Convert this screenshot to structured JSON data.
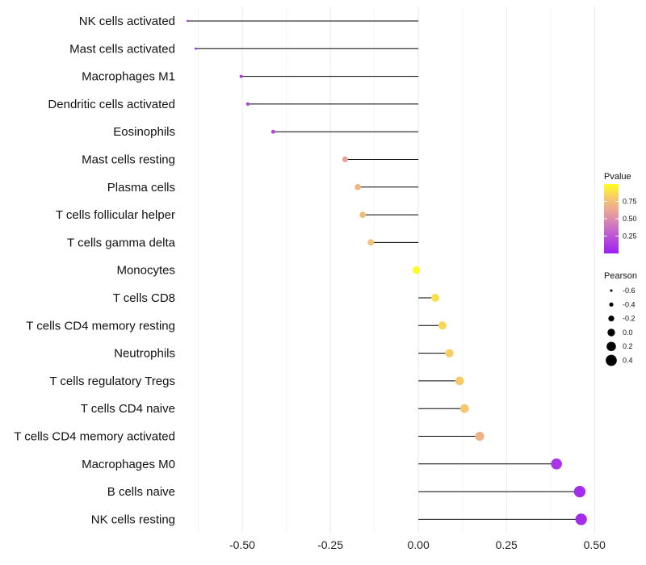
{
  "chart_data": {
    "type": "scatter",
    "subtype": "lollipop",
    "title": "",
    "xlabel": "",
    "ylabel": "",
    "xlim": [
      -0.665,
      0.52
    ],
    "x_ticks": [
      -0.5,
      -0.25,
      0.0,
      0.25,
      0.5
    ],
    "x_tick_labels": [
      "-0.50",
      "-0.25",
      "0.00",
      "0.25",
      "0.50"
    ],
    "grid": true,
    "categories": [
      "NK cells activated",
      "Mast cells activated",
      "Macrophages M1",
      "Dendritic cells activated",
      "Eosinophils",
      "Mast cells resting",
      "Plasma cells",
      "T cells follicular helper",
      "T cells gamma delta",
      "Monocytes",
      "T cells CD8",
      "T cells CD4 memory resting",
      "Neutrophils",
      "T cells regulatory  Tregs ",
      "T cells CD4 naive",
      "T cells CD4 memory activated",
      "Macrophages M0",
      "B cells naive",
      "NK cells resting"
    ],
    "values": [
      -0.655,
      -0.632,
      -0.503,
      -0.484,
      -0.412,
      -0.208,
      -0.172,
      -0.158,
      -0.135,
      -0.006,
      0.048,
      0.068,
      0.088,
      0.117,
      0.131,
      0.174,
      0.392,
      0.458,
      0.462
    ],
    "pvalues": [
      0.01,
      0.01,
      0.12,
      0.14,
      0.2,
      0.6,
      0.7,
      0.72,
      0.75,
      0.98,
      0.88,
      0.85,
      0.82,
      0.8,
      0.78,
      0.68,
      0.1,
      0.06,
      0.06
    ],
    "legend": {
      "pvalue": {
        "title": "Pvalue",
        "ticks": [
          0.75,
          0.5,
          0.25
        ],
        "tick_labels": [
          "0.75",
          "0.50",
          "0.25"
        ],
        "range": [
          0.0,
          1.0
        ],
        "colors": [
          "#a020f0",
          "#e8a0a0",
          "#ffff00"
        ]
      },
      "pearson": {
        "title": "Pearson",
        "values": [
          -0.6,
          -0.4,
          -0.2,
          0.0,
          0.2,
          0.4
        ],
        "labels": [
          "-0.6",
          "-0.4",
          "-0.2",
          "0.0",
          "0.2",
          "0.4"
        ]
      },
      "placement": "right"
    }
  }
}
